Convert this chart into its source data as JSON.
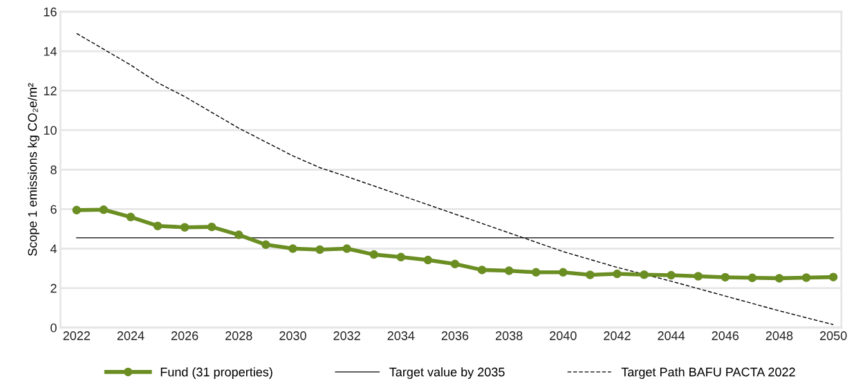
{
  "chart_data": {
    "type": "line",
    "ylabel": "Scope 1 emissions kg CO₂e/m²",
    "xlim": [
      2021.4,
      2050.3
    ],
    "xticks": [
      2022,
      2024,
      2026,
      2028,
      2030,
      2032,
      2034,
      2036,
      2038,
      2040,
      2042,
      2044,
      2046,
      2048,
      2050
    ],
    "ylim": [
      0,
      16
    ],
    "yticks": [
      0,
      2,
      4,
      6,
      8,
      10,
      12,
      14,
      16
    ],
    "grid": "y",
    "legend": "bottom",
    "series": [
      {
        "name": "Fund (31 properties)",
        "color": "#6b8e23",
        "marker": "circle",
        "line_style": "solid",
        "x": [
          2022,
          2023,
          2024,
          2025,
          2026,
          2027,
          2028,
          2029,
          2030,
          2031,
          2032,
          2033,
          2034,
          2035,
          2036,
          2037,
          2038,
          2039,
          2040,
          2041,
          2042,
          2043,
          2044,
          2045,
          2046,
          2047,
          2048,
          2049,
          2050
        ],
        "values": [
          5.95,
          5.97,
          5.6,
          5.15,
          5.08,
          5.1,
          4.7,
          4.2,
          4.0,
          3.95,
          4.0,
          3.7,
          3.57,
          3.42,
          3.22,
          2.92,
          2.88,
          2.8,
          2.8,
          2.67,
          2.72,
          2.68,
          2.65,
          2.6,
          2.55,
          2.52,
          2.5,
          2.53,
          2.56
        ]
      },
      {
        "name": "Target value by 2035",
        "color": "#000000",
        "marker": "none",
        "line_style": "solid",
        "x": [
          2022,
          2050
        ],
        "values": [
          4.55,
          4.55
        ]
      },
      {
        "name": "Target Path BAFU PACTA 2022",
        "color": "#000000",
        "marker": "none",
        "line_style": "dashed",
        "x": [
          2022,
          2024,
          2025,
          2026,
          2028,
          2030,
          2031,
          2032,
          2034,
          2036,
          2038,
          2040,
          2042,
          2044,
          2046,
          2048,
          2050
        ],
        "values": [
          14.9,
          13.3,
          12.4,
          11.7,
          10.1,
          8.7,
          8.1,
          7.65,
          6.7,
          5.75,
          4.8,
          3.85,
          3.05,
          2.35,
          1.6,
          0.85,
          0.15
        ]
      }
    ]
  }
}
